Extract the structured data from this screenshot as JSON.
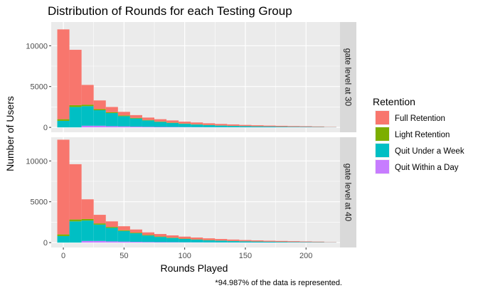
{
  "chart_data": {
    "type": "histogram-stacked-faceted",
    "title": "Distribution of Rounds for each Testing Group",
    "xlabel": "Rounds Played",
    "ylabel": "Number of Users",
    "caption": "*94.987% of the data is represented.",
    "xlim": [
      -10,
      228
    ],
    "ylim": [
      -600,
      12900
    ],
    "x_ticks": [
      0,
      50,
      100,
      150,
      200
    ],
    "y_ticks": [
      0,
      5000,
      10000
    ],
    "bin_width": 10,
    "bins": [
      -5,
      5,
      15,
      25,
      35,
      45,
      55,
      65,
      75,
      85,
      95,
      105,
      115,
      125,
      135,
      145,
      155,
      165,
      175,
      185,
      195,
      205,
      215,
      225
    ],
    "legend": {
      "title": "Retention",
      "position": "right",
      "entries": [
        {
          "label": "Full Retention",
          "color": "#F8766D"
        },
        {
          "label": "Light Retention",
          "color": "#7CAE00"
        },
        {
          "label": "Quit Under a Week",
          "color": "#00BFC4"
        },
        {
          "label": "Quit Within a Day",
          "color": "#C77CFF"
        }
      ]
    },
    "panels": [
      {
        "strip": "gate level at 30",
        "totals": [
          12000,
          9500,
          5200,
          3300,
          2500,
          1900,
          1500,
          1200,
          1000,
          850,
          700,
          600,
          500,
          420,
          360,
          300,
          260,
          220,
          190,
          160,
          140,
          110,
          60
        ],
        "light": [
          200,
          220,
          180,
          140,
          110,
          90,
          70,
          55,
          45,
          40,
          35,
          30,
          25,
          20,
          18,
          15,
          12,
          10,
          8,
          7,
          6,
          5,
          3
        ],
        "week": [
          800,
          2500,
          2400,
          1900,
          1600,
          1250,
          1000,
          780,
          620,
          500,
          400,
          320,
          250,
          200,
          160,
          130,
          110,
          90,
          75,
          60,
          50,
          40,
          25
        ],
        "day": [
          0,
          0,
          200,
          200,
          150,
          120,
          90,
          70,
          55,
          45,
          35,
          28,
          22,
          18,
          15,
          12,
          10,
          8,
          6,
          5,
          4,
          3,
          2
        ]
      },
      {
        "strip": "gate level at 40",
        "totals": [
          12600,
          9600,
          5300,
          3400,
          2600,
          2000,
          1600,
          1250,
          1050,
          880,
          730,
          620,
          520,
          440,
          370,
          310,
          270,
          230,
          200,
          170,
          140,
          115,
          60
        ],
        "light": [
          200,
          230,
          190,
          150,
          115,
          95,
          75,
          60,
          48,
          42,
          36,
          30,
          25,
          20,
          18,
          15,
          12,
          10,
          8,
          7,
          6,
          5,
          3
        ],
        "week": [
          800,
          2600,
          2500,
          2000,
          1650,
          1300,
          1050,
          800,
          640,
          520,
          410,
          330,
          260,
          210,
          165,
          135,
          115,
          95,
          78,
          62,
          52,
          42,
          26
        ],
        "day": [
          0,
          0,
          200,
          200,
          150,
          120,
          90,
          70,
          55,
          45,
          35,
          28,
          22,
          18,
          15,
          12,
          10,
          8,
          6,
          5,
          4,
          3,
          2
        ]
      }
    ]
  }
}
